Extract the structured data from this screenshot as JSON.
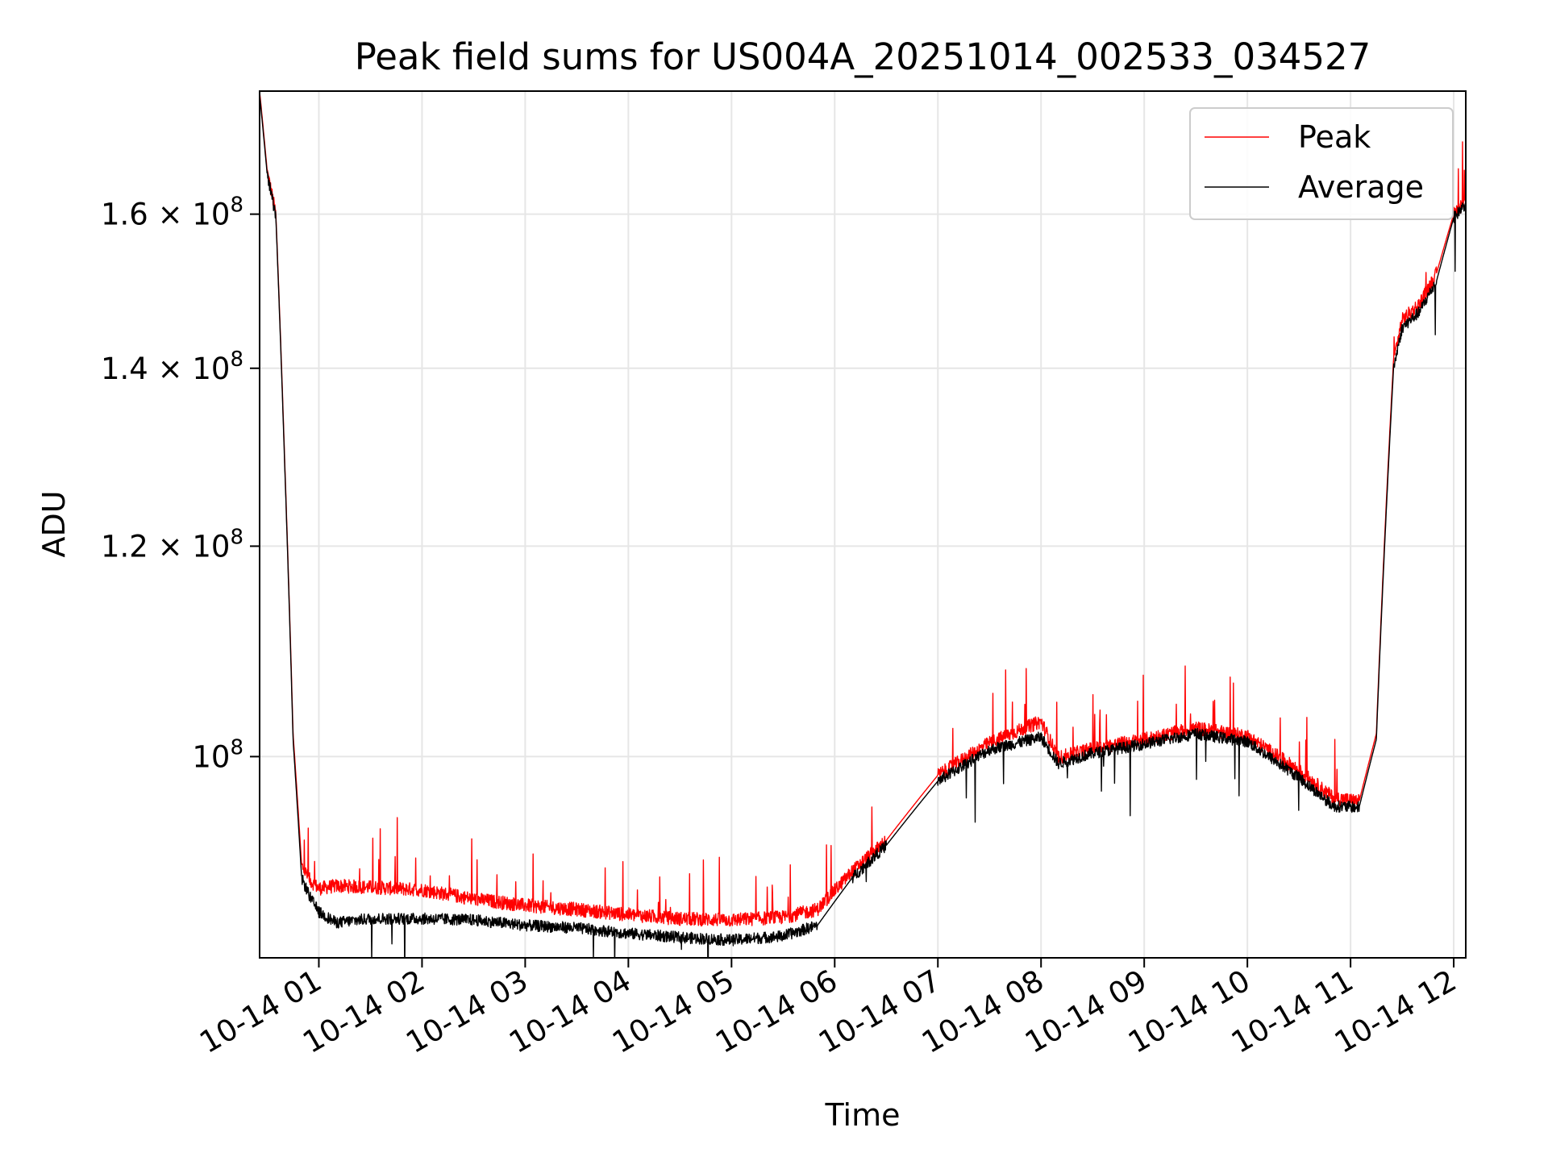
{
  "chart_data": {
    "type": "line",
    "title": "Peak field sums for US004A_20251014_002533_034527",
    "xlabel": "Time",
    "ylabel": "ADU",
    "yscale": "log",
    "ylim": [
      84000000,
      178000000
    ],
    "xlim": [
      "2025-10-14 00:25:33",
      "2025-10-14 12:07:00"
    ],
    "grid": true,
    "legend_position": "upper-right",
    "x_ticks": [
      {
        "label": "10-14 01",
        "time": "2025-10-14 01:00"
      },
      {
        "label": "10-14 02",
        "time": "2025-10-14 02:00"
      },
      {
        "label": "10-14 03",
        "time": "2025-10-14 03:00"
      },
      {
        "label": "10-14 04",
        "time": "2025-10-14 04:00"
      },
      {
        "label": "10-14 05",
        "time": "2025-10-14 05:00"
      },
      {
        "label": "10-14 06",
        "time": "2025-10-14 06:00"
      },
      {
        "label": "10-14 07",
        "time": "2025-10-14 07:00"
      },
      {
        "label": "10-14 08",
        "time": "2025-10-14 08:00"
      },
      {
        "label": "10-14 09",
        "time": "2025-10-14 09:00"
      },
      {
        "label": "10-14 10",
        "time": "2025-10-14 10:00"
      },
      {
        "label": "10-14 11",
        "time": "2025-10-14 11:00"
      },
      {
        "label": "10-14 12",
        "time": "2025-10-14 12:00"
      }
    ],
    "y_ticks": [
      {
        "label": "10",
        "exponent": "8",
        "coef": "",
        "value": 100000000
      },
      {
        "label": "1.2 × 10",
        "exponent": "8",
        "coef": "1.2",
        "value": 120000000
      },
      {
        "label": "1.4 × 10",
        "exponent": "8",
        "coef": "1.4",
        "value": 140000000
      },
      {
        "label": "1.6 × 10",
        "exponent": "8",
        "coef": "1.6",
        "value": 160000000
      }
    ],
    "series": [
      {
        "name": "Peak",
        "color": "#ff0000",
        "x": [
          "2025-10-14 00:25:33",
          "2025-10-14 00:30",
          "2025-10-14 00:35",
          "2025-10-14 00:40",
          "2025-10-14 00:45",
          "2025-10-14 00:50",
          "2025-10-14 00:55",
          "2025-10-14 01:00",
          "2025-10-14 01:10",
          "2025-10-14 01:30",
          "2025-10-14 02:00",
          "2025-10-14 02:30",
          "2025-10-14 03:00",
          "2025-10-14 03:30",
          "2025-10-14 04:00",
          "2025-10-14 04:30",
          "2025-10-14 05:00",
          "2025-10-14 05:30",
          "2025-10-14 05:50",
          "2025-10-14 06:10",
          "2025-10-14 06:30",
          "2025-10-14 07:00",
          "2025-10-14 07:30",
          "2025-10-14 08:00",
          "2025-10-14 08:10",
          "2025-10-14 08:30",
          "2025-10-14 09:00",
          "2025-10-14 09:30",
          "2025-10-14 10:00",
          "2025-10-14 10:30",
          "2025-10-14 10:50",
          "2025-10-14 11:05",
          "2025-10-14 11:15",
          "2025-10-14 11:25",
          "2025-10-14 11:30",
          "2025-10-14 11:40",
          "2025-10-14 11:50",
          "2025-10-14 12:00",
          "2025-10-14 12:07"
        ],
        "values": [
          178000000,
          166000000,
          160000000,
          130000000,
          102000000,
          91000000,
          89800000,
          89200000,
          89400000,
          89300000,
          89100000,
          88400000,
          87900000,
          87600000,
          87200000,
          86900000,
          86800000,
          87000000,
          87600000,
          90500000,
          93000000,
          98400000,
          101200000,
          103100000,
          99900000,
          100700000,
          101500000,
          102500000,
          101800000,
          98800000,
          96500000,
          96200000,
          102000000,
          141000000,
          146000000,
          148000000,
          152000000,
          160000000,
          162000000
        ]
      },
      {
        "name": "Average",
        "color": "#000000",
        "x": [
          "2025-10-14 00:25:33",
          "2025-10-14 00:30",
          "2025-10-14 00:35",
          "2025-10-14 00:40",
          "2025-10-14 00:45",
          "2025-10-14 00:50",
          "2025-10-14 00:55",
          "2025-10-14 01:00",
          "2025-10-14 01:10",
          "2025-10-14 01:30",
          "2025-10-14 02:00",
          "2025-10-14 02:30",
          "2025-10-14 03:00",
          "2025-10-14 03:30",
          "2025-10-14 04:00",
          "2025-10-14 04:30",
          "2025-10-14 05:00",
          "2025-10-14 05:30",
          "2025-10-14 05:50",
          "2025-10-14 06:10",
          "2025-10-14 06:30",
          "2025-10-14 07:00",
          "2025-10-14 07:30",
          "2025-10-14 08:00",
          "2025-10-14 08:10",
          "2025-10-14 08:30",
          "2025-10-14 09:00",
          "2025-10-14 09:30",
          "2025-10-14 10:00",
          "2025-10-14 10:30",
          "2025-10-14 10:50",
          "2025-10-14 11:05",
          "2025-10-14 11:15",
          "2025-10-14 11:25",
          "2025-10-14 11:30",
          "2025-10-14 11:40",
          "2025-10-14 11:50",
          "2025-10-14 12:00",
          "2025-10-14 12:07"
        ],
        "values": [
          177500000,
          165500000,
          159500000,
          129500000,
          101500000,
          90000000,
          88500000,
          87400000,
          86600000,
          86900000,
          86900000,
          86800000,
          86400000,
          86200000,
          85800000,
          85500000,
          85300000,
          85600000,
          86400000,
          90000000,
          92600000,
          97900000,
          100600000,
          101700000,
          99400000,
          100300000,
          101100000,
          102000000,
          101300000,
          98200000,
          95800000,
          95700000,
          101500000,
          140000000,
          145000000,
          147000000,
          151000000,
          159500000,
          161500000
        ]
      }
    ]
  }
}
